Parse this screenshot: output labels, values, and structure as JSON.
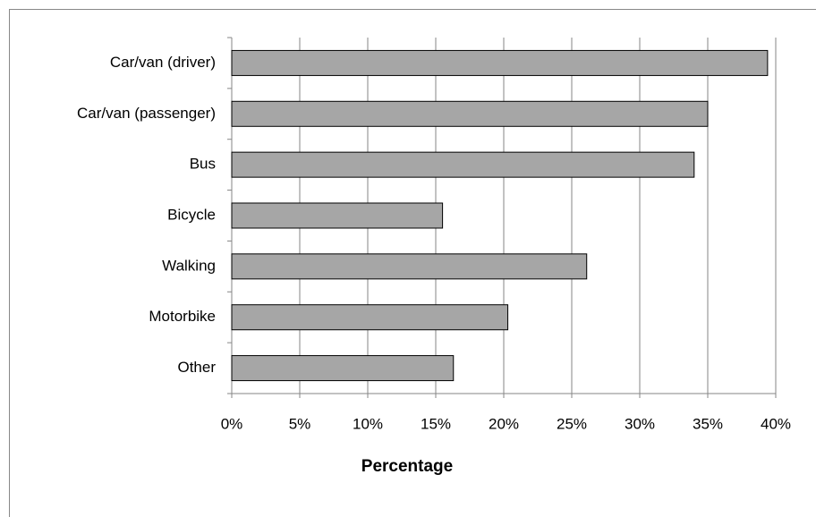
{
  "chart_data": {
    "type": "bar",
    "orientation": "horizontal",
    "categories": [
      "Car/van (driver)",
      "Car/van (passenger)",
      "Bus",
      "Bicycle",
      "Walking",
      "Motorbike",
      "Other"
    ],
    "values": [
      39.4,
      35,
      34,
      15.5,
      26.1,
      20.3,
      16.3
    ],
    "color": "#a6a6a6",
    "x_label": "Percentage",
    "xlim": [
      0,
      40
    ],
    "xticks": [
      {
        "value": 0,
        "label": "0%"
      },
      {
        "value": 5,
        "label": "5%"
      },
      {
        "value": 10,
        "label": "10%"
      },
      {
        "value": 15,
        "label": "15%"
      },
      {
        "value": 20,
        "label": "20%"
      },
      {
        "value": 25,
        "label": "25%"
      },
      {
        "value": 30,
        "label": "30%"
      },
      {
        "value": 35,
        "label": "35%"
      },
      {
        "value": 40,
        "label": "40%"
      }
    ],
    "grid": true
  }
}
